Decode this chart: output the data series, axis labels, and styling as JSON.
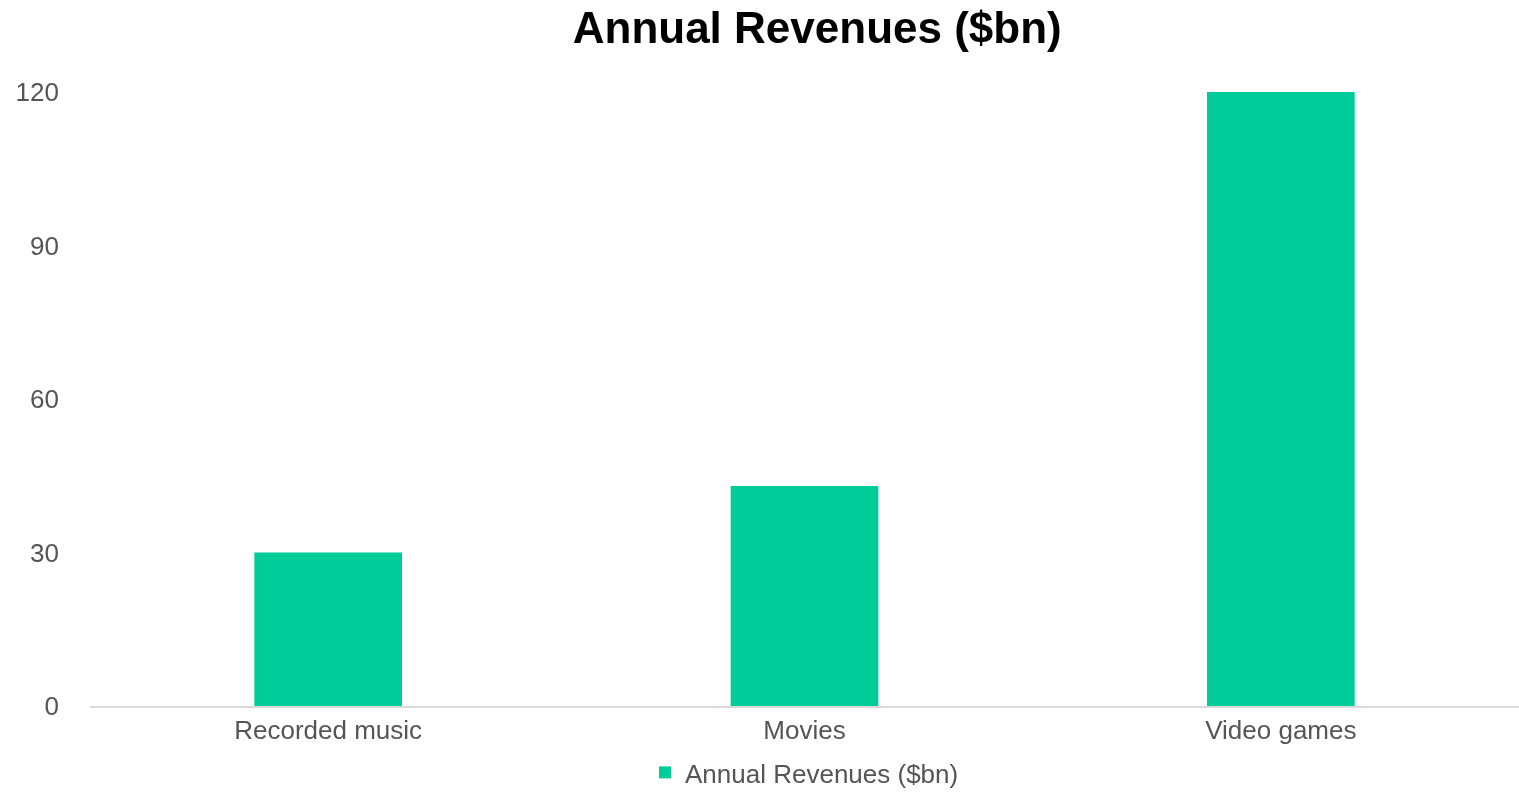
{
  "chart_data": {
    "type": "bar",
    "title": "Annual Revenues ($bn)",
    "categories": [
      "Recorded music",
      "Movies",
      "Video games"
    ],
    "series": [
      {
        "name": "Annual Revenues ($bn)",
        "color": "#00cc99",
        "values": [
          30,
          43,
          120
        ]
      }
    ],
    "ylim": [
      0,
      120
    ],
    "yticks": [
      0,
      30,
      60,
      90,
      120
    ],
    "grid": false,
    "legend": "bottom"
  }
}
